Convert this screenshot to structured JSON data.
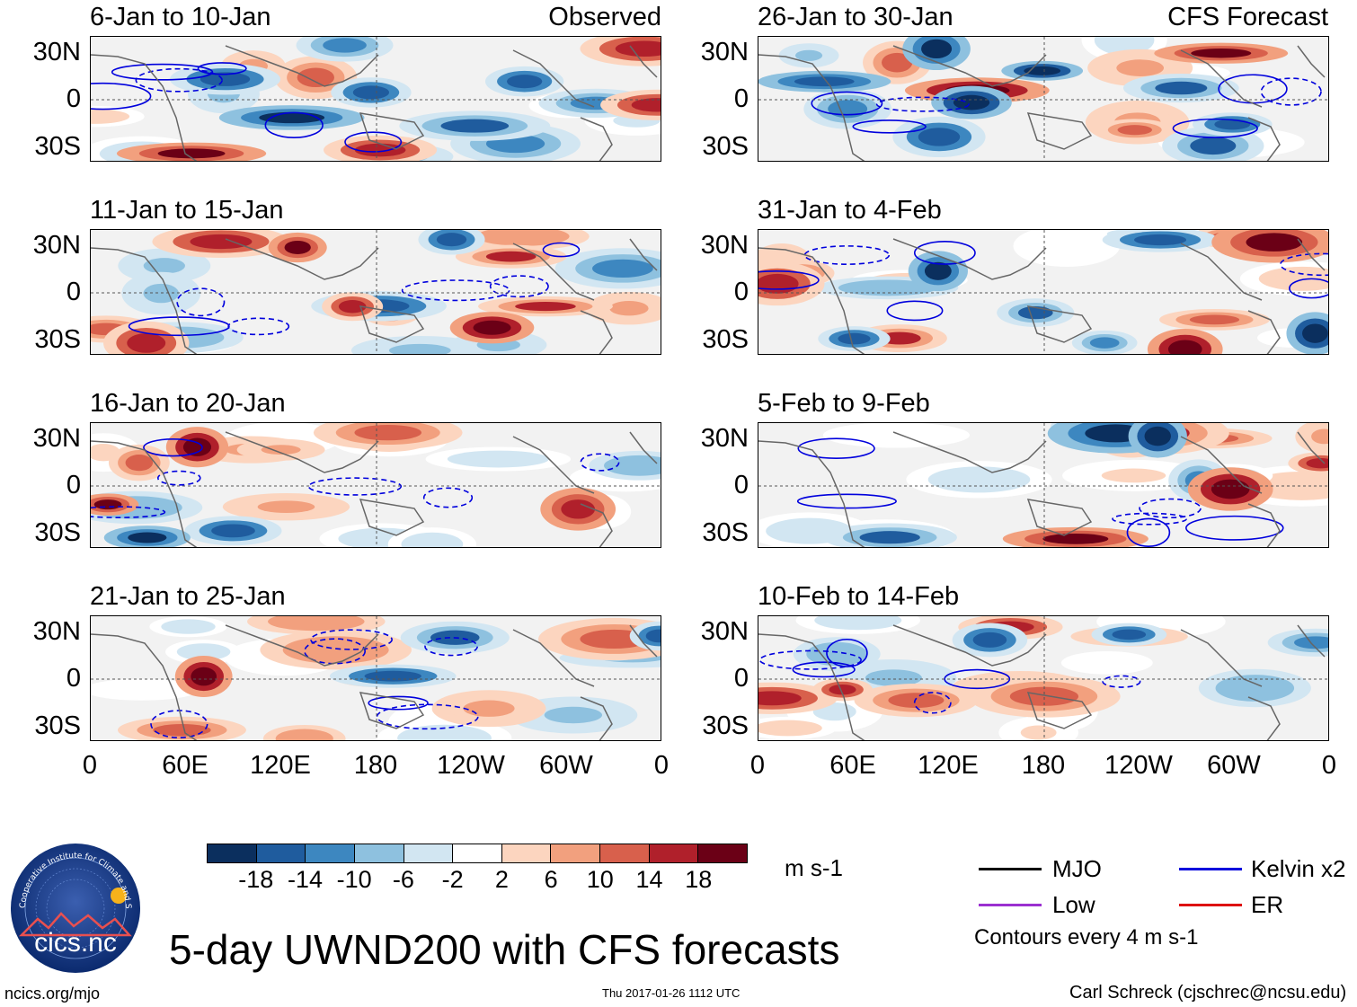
{
  "chart_data": {
    "type": "heatmap",
    "title": "5-day UWND200 with CFS forecasts",
    "variable": "UWND200",
    "units": "m s-1",
    "column_labels": {
      "left": "Observed",
      "right": "CFS Forecast"
    },
    "x_ticks": [
      "0",
      "60E",
      "120E",
      "180",
      "120W",
      "60W",
      "0"
    ],
    "y_ticks": [
      "30N",
      "0",
      "30S"
    ],
    "xlim": [
      0,
      360
    ],
    "ylim": [
      -40,
      40
    ],
    "colorbar": {
      "levels": [
        "-18",
        "-14",
        "-10",
        "-6",
        "-2",
        "2",
        "6",
        "10",
        "14",
        "18"
      ],
      "colors": [
        "#0b2f5e",
        "#1f5c9e",
        "#3d87c0",
        "#8ec1df",
        "#d2e6f2",
        "#ffffff",
        "#fcd5bf",
        "#f2a07e",
        "#d8604c",
        "#b0202b",
        "#6b0016"
      ]
    },
    "legend": [
      {
        "name": "MJO",
        "color": "#000000"
      },
      {
        "name": "Kelvin x2",
        "color": "#0000dd"
      },
      {
        "name": "Low",
        "color": "#9b30d0"
      },
      {
        "name": "ER",
        "color": "#dd1111"
      }
    ],
    "contour_note": "Contours every 4 m s-1",
    "panels": [
      {
        "period": "6-Jan to 10-Jan",
        "source": "Observed",
        "column": "left",
        "row": 0
      },
      {
        "period": "11-Jan to 15-Jan",
        "source": "Observed",
        "column": "left",
        "row": 1
      },
      {
        "period": "16-Jan to 20-Jan",
        "source": "Observed",
        "column": "left",
        "row": 2
      },
      {
        "period": "21-Jan to 25-Jan",
        "source": "Observed",
        "column": "left",
        "row": 3
      },
      {
        "period": "26-Jan to 30-Jan",
        "source": "CFS Forecast",
        "column": "right",
        "row": 0
      },
      {
        "period": "31-Jan to 4-Feb",
        "source": "CFS Forecast",
        "column": "right",
        "row": 1
      },
      {
        "period": "5-Feb to 9-Feb",
        "source": "CFS Forecast",
        "column": "right",
        "row": 2
      },
      {
        "period": "10-Feb to 14-Feb",
        "source": "CFS Forecast",
        "column": "right",
        "row": 3
      }
    ]
  },
  "footer": {
    "logo_text": "cics.nc",
    "logo_ring_text": "Cooperative Institute for Climate and Satellites",
    "url": "ncics.org/mjo",
    "timestamp": "Thu 2017-01-26 1112 UTC",
    "author": "Carl Schreck (cjschrec@ncsu.edu)"
  }
}
